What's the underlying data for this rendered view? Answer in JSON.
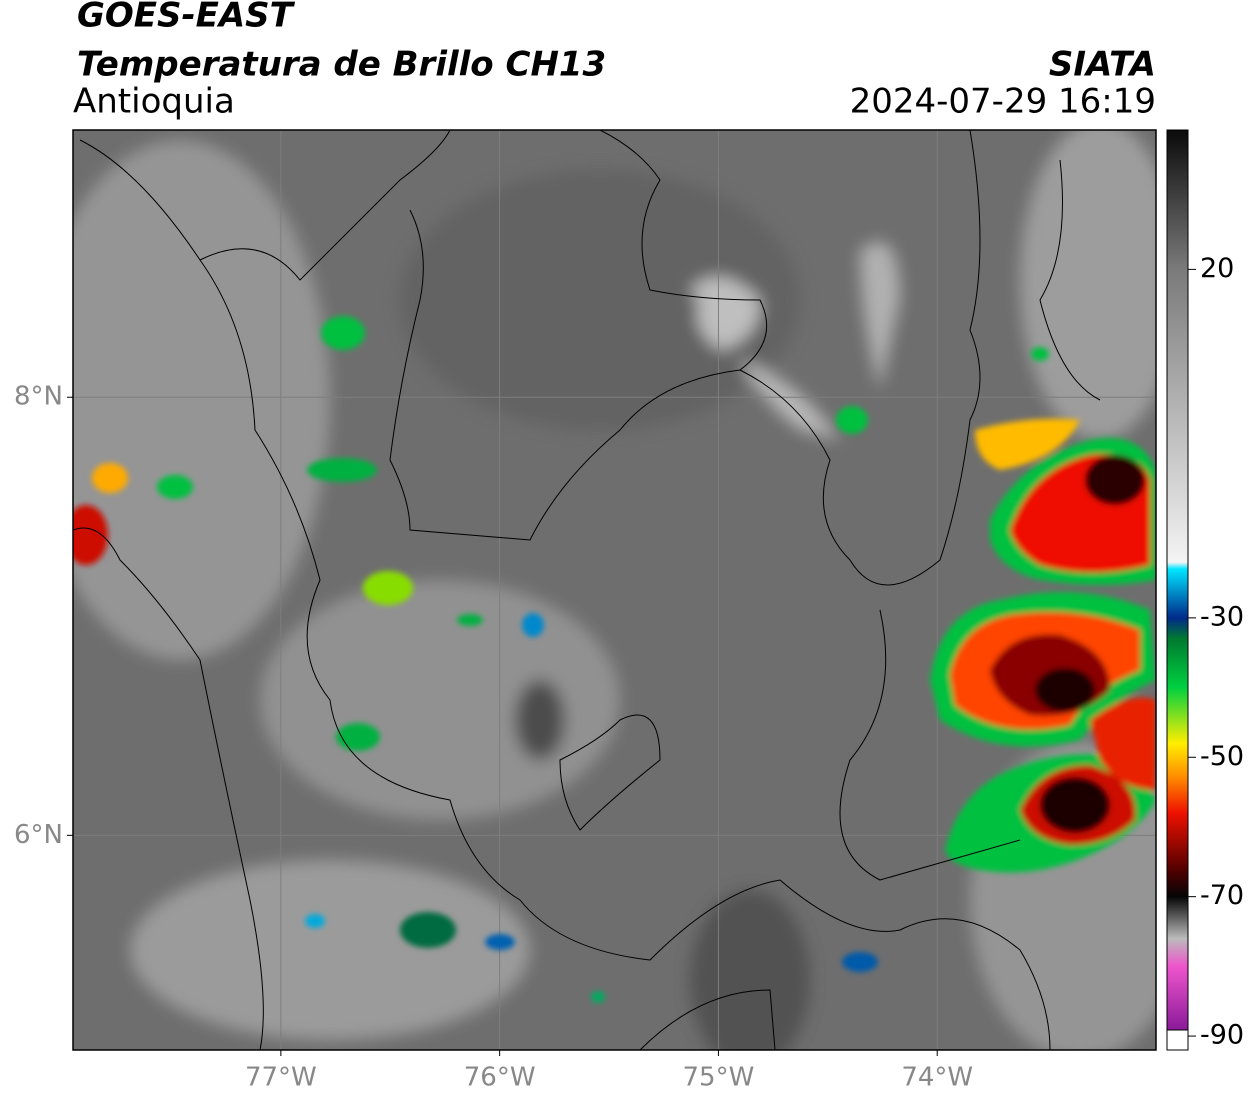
{
  "header": {
    "satellite": "GOES-EAST",
    "product": "Temperatura de Brillo CH13",
    "region": "Antioquia",
    "source": "SIATA",
    "datetime": "2024-07-29 16:19"
  },
  "map": {
    "lonlim": [
      -77.95,
      -73.0
    ],
    "latlim": [
      5.02,
      9.22
    ],
    "lon_ticks": [
      {
        "value": -77,
        "label": "77°W"
      },
      {
        "value": -76,
        "label": "76°W"
      },
      {
        "value": -75,
        "label": "75°W"
      },
      {
        "value": -74,
        "label": "74°W"
      }
    ],
    "lat_ticks": [
      {
        "value": 8,
        "label": "8°N"
      },
      {
        "value": 6,
        "label": "6°N"
      }
    ]
  },
  "colorbar": {
    "clim": [
      -92,
      40
    ],
    "ticks": [
      20,
      -30,
      -50,
      -70,
      -90
    ],
    "colormap": [
      {
        "value": 40,
        "color": "#0a0a0a"
      },
      {
        "value": 20,
        "color": "#7a7a7a"
      },
      {
        "value": -22,
        "color": "#f4f4f4"
      },
      {
        "value": -23,
        "color": "#00e5ff"
      },
      {
        "value": -30,
        "color": "#002a8a"
      },
      {
        "value": -33,
        "color": "#007a30"
      },
      {
        "value": -40,
        "color": "#00d040"
      },
      {
        "value": -48,
        "color": "#ffee00"
      },
      {
        "value": -53,
        "color": "#ff8800"
      },
      {
        "value": -58,
        "color": "#ee1100"
      },
      {
        "value": -66,
        "color": "#550000"
      },
      {
        "value": -70,
        "color": "#050505"
      },
      {
        "value": -76,
        "color": "#bbbbbb"
      },
      {
        "value": -80,
        "color": "#ee55cc"
      },
      {
        "value": -91,
        "color": "#8a1a99"
      }
    ]
  }
}
